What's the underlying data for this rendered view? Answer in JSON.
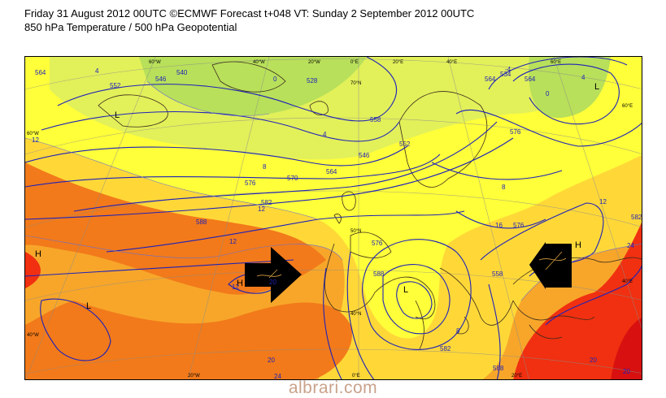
{
  "header": {
    "title": "Friday 31 August 2012 00UTC ©ECMWF Forecast t+048 VT: Sunday 2 September 2012 00UTC",
    "subtitle": "850 hPa Temperature / 500 hPa Geopotential"
  },
  "map": {
    "longitude_labels": [
      "60°W",
      "40°W",
      "20°W",
      "0°E",
      "20°E",
      "40°E",
      "60°E",
      "20°W",
      "0°E",
      "20°E"
    ],
    "latitude_labels": [
      "60°W",
      "40°W",
      "60°E",
      "40°E",
      "70°N",
      "50°N",
      "40°N"
    ],
    "geopotential_labels": [
      "564",
      "540",
      "552",
      "528",
      "546",
      "534",
      "576",
      "570",
      "582",
      "588",
      "558",
      "564",
      "576",
      "588",
      "576",
      "564",
      "564",
      "552",
      "546",
      "558",
      "576",
      "582",
      "588",
      "582"
    ],
    "temperature_labels": [
      "12",
      "12",
      "8",
      "4",
      "0",
      "8",
      "12",
      "20",
      "24",
      "20",
      "12",
      "4",
      "16",
      "12",
      "8",
      "20",
      "24",
      "20",
      "-4",
      "0",
      "4"
    ],
    "pressure_centres": [
      "L",
      "L",
      "L",
      "H",
      "H",
      "H",
      "L"
    ],
    "colors": {
      "very_cold": "#b8e05a",
      "cold": "#e2f05a",
      "cool": "#ffff3a",
      "mild": "#ffd838",
      "warm": "#f7a62a",
      "warmer": "#f27a1a",
      "hot": "#f03010",
      "very_hot": "#d81010",
      "contour": "#1f22b8",
      "arrow": "#000000"
    }
  },
  "watermark": "albrari.com"
}
